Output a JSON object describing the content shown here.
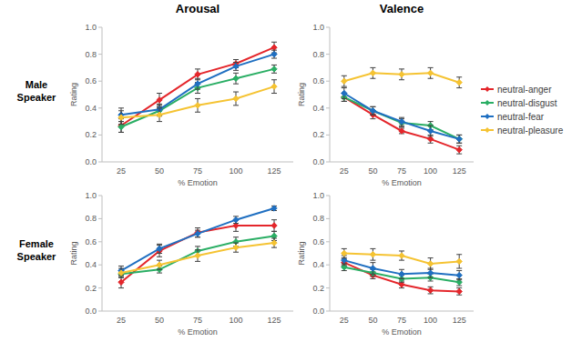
{
  "chart_data": [
    {
      "type": "line",
      "title": "Arousal",
      "annotations": [
        "Male Speaker"
      ],
      "x_label": "% Emotion",
      "y_label": "Rating",
      "categories": [
        "25",
        "50",
        "75",
        "100",
        "125"
      ],
      "ylim": [
        0,
        1
      ],
      "yticks": [
        {
          "value": 0,
          "label": "0.0"
        },
        {
          "value": 0.2,
          "label": "0.2"
        },
        {
          "value": 0.4,
          "label": "0.4"
        },
        {
          "value": 0.6,
          "label": "0.6"
        },
        {
          "value": 0.8,
          "label": "0.8"
        },
        {
          "value": 1,
          "label": "1.0"
        }
      ],
      "grid": false,
      "marker": "diamond",
      "series": [
        {
          "name": "neutral-anger",
          "color": "#e4262b",
          "values": [
            0.27,
            0.46,
            0.65,
            0.73,
            0.85
          ],
          "errors": [
            0.05,
            0.05,
            0.04,
            0.03,
            0.04
          ]
        },
        {
          "name": "neutral-disgust",
          "color": "#2aae64",
          "values": [
            0.26,
            0.38,
            0.55,
            0.62,
            0.69
          ],
          "errors": [
            0.04,
            0.04,
            0.04,
            0.04,
            0.03
          ]
        },
        {
          "name": "neutral-fear",
          "color": "#1f6fc1",
          "values": [
            0.35,
            0.39,
            0.58,
            0.71,
            0.8
          ],
          "errors": [
            0.05,
            0.04,
            0.04,
            0.03,
            0.03
          ]
        },
        {
          "name": "neutral-pleasure",
          "color": "#f5c332",
          "values": [
            0.33,
            0.35,
            0.42,
            0.47,
            0.56
          ],
          "errors": [
            0.05,
            0.05,
            0.05,
            0.05,
            0.05
          ]
        }
      ]
    },
    {
      "type": "line",
      "title": "Valence",
      "x_label": "% Emotion",
      "y_label": "Rating",
      "categories": [
        "25",
        "50",
        "75",
        "100",
        "125"
      ],
      "ylim": [
        0,
        1
      ],
      "yticks": [
        {
          "value": 0,
          "label": "0.0"
        },
        {
          "value": 0.2,
          "label": "0.2"
        },
        {
          "value": 0.4,
          "label": "0.4"
        },
        {
          "value": 0.6,
          "label": "0.6"
        },
        {
          "value": 0.8,
          "label": "0.8"
        },
        {
          "value": 1,
          "label": "1.0"
        }
      ],
      "grid": false,
      "marker": "diamond",
      "legend": "right",
      "series": [
        {
          "name": "neutral-anger",
          "color": "#e4262b",
          "values": [
            0.48,
            0.35,
            0.23,
            0.17,
            0.09
          ],
          "errors": [
            0.03,
            0.03,
            0.02,
            0.03,
            0.03
          ]
        },
        {
          "name": "neutral-disgust",
          "color": "#2aae64",
          "values": [
            0.48,
            0.38,
            0.29,
            0.27,
            0.17
          ],
          "errors": [
            0.03,
            0.03,
            0.03,
            0.03,
            0.03
          ]
        },
        {
          "name": "neutral-fear",
          "color": "#1f6fc1",
          "values": [
            0.51,
            0.38,
            0.3,
            0.23,
            0.17
          ],
          "errors": [
            0.04,
            0.03,
            0.03,
            0.04,
            0.03
          ]
        },
        {
          "name": "neutral-pleasure",
          "color": "#f5c332",
          "values": [
            0.6,
            0.66,
            0.65,
            0.66,
            0.59
          ],
          "errors": [
            0.04,
            0.04,
            0.04,
            0.04,
            0.04
          ]
        }
      ]
    },
    {
      "type": "line",
      "annotations": [
        "Female Speaker"
      ],
      "x_label": "% Emotion",
      "y_label": "Rating",
      "categories": [
        "25",
        "50",
        "75",
        "100",
        "125"
      ],
      "ylim": [
        0,
        1
      ],
      "yticks": [
        {
          "value": 0,
          "label": "0.0"
        },
        {
          "value": 0.2,
          "label": "0.2"
        },
        {
          "value": 0.4,
          "label": "0.4"
        },
        {
          "value": 0.6,
          "label": "0.6"
        },
        {
          "value": 0.8,
          "label": "0.8"
        },
        {
          "value": 1,
          "label": "1.0"
        }
      ],
      "grid": false,
      "marker": "diamond",
      "series": [
        {
          "name": "neutral-anger",
          "color": "#e4262b",
          "values": [
            0.25,
            0.52,
            0.68,
            0.74,
            0.74
          ],
          "errors": [
            0.05,
            0.05,
            0.04,
            0.05,
            0.05
          ]
        },
        {
          "name": "neutral-disgust",
          "color": "#2aae64",
          "values": [
            0.32,
            0.36,
            0.52,
            0.6,
            0.65
          ],
          "errors": [
            0.03,
            0.03,
            0.04,
            0.04,
            0.04
          ]
        },
        {
          "name": "neutral-fear",
          "color": "#1f6fc1",
          "values": [
            0.35,
            0.54,
            0.67,
            0.79,
            0.89
          ],
          "errors": [
            0.04,
            0.04,
            0.03,
            0.03,
            0.02
          ]
        },
        {
          "name": "neutral-pleasure",
          "color": "#f5c332",
          "values": [
            0.33,
            0.4,
            0.48,
            0.55,
            0.59
          ],
          "errors": [
            0.04,
            0.04,
            0.05,
            0.04,
            0.04
          ]
        }
      ]
    },
    {
      "type": "line",
      "x_label": "% Emotion",
      "y_label": "Rating",
      "categories": [
        "25",
        "50",
        "75",
        "100",
        "125"
      ],
      "ylim": [
        0,
        1
      ],
      "yticks": [
        {
          "value": 0,
          "label": "0.0"
        },
        {
          "value": 0.2,
          "label": "0.2"
        },
        {
          "value": 0.4,
          "label": "0.4"
        },
        {
          "value": 0.6,
          "label": "0.6"
        },
        {
          "value": 0.8,
          "label": "0.8"
        },
        {
          "value": 1,
          "label": "1.0"
        }
      ],
      "grid": false,
      "marker": "diamond",
      "series": [
        {
          "name": "neutral-anger",
          "color": "#e4262b",
          "values": [
            0.42,
            0.31,
            0.23,
            0.18,
            0.17
          ],
          "errors": [
            0.03,
            0.03,
            0.03,
            0.03,
            0.03
          ]
        },
        {
          "name": "neutral-disgust",
          "color": "#2aae64",
          "values": [
            0.38,
            0.33,
            0.28,
            0.29,
            0.25
          ],
          "errors": [
            0.03,
            0.03,
            0.03,
            0.03,
            0.03
          ]
        },
        {
          "name": "neutral-fear",
          "color": "#1f6fc1",
          "values": [
            0.44,
            0.37,
            0.32,
            0.33,
            0.31
          ],
          "errors": [
            0.04,
            0.05,
            0.04,
            0.04,
            0.04
          ]
        },
        {
          "name": "neutral-pleasure",
          "color": "#f5c332",
          "values": [
            0.5,
            0.49,
            0.48,
            0.41,
            0.43
          ],
          "errors": [
            0.04,
            0.05,
            0.04,
            0.05,
            0.06
          ]
        }
      ]
    }
  ]
}
